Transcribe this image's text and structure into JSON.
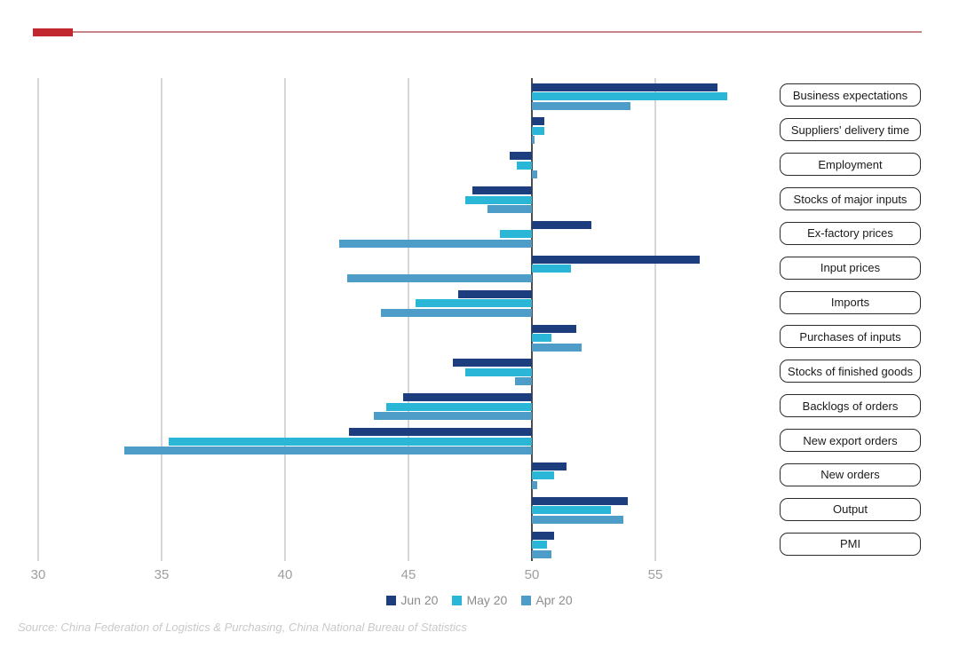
{
  "header": {
    "accent_color": "#c2262e",
    "rule_color": "#c9838a"
  },
  "chart_data": {
    "type": "bar",
    "orientation": "horizontal",
    "title": "",
    "baseline": 50,
    "xlim": [
      30,
      58.5
    ],
    "xticks": [
      30,
      35,
      40,
      45,
      50,
      55
    ],
    "grid": true,
    "legend_position": "bottom-center",
    "gridline_color": "#d6d6d6",
    "baseline_color": "#4d4d4d",
    "tick_label_color": "#9e9e9e",
    "categories": [
      "Business expectations",
      "Suppliers' delivery time",
      "Employment",
      "Stocks of major inputs",
      "Ex-factory prices",
      "Input prices",
      "Imports",
      "Purchases of inputs",
      "Stocks of finished goods",
      "Backlogs of orders",
      "New export orders",
      "New orders",
      "Output",
      "PMI"
    ],
    "series": [
      {
        "name": "Jun 20",
        "color": "#1d3e7e",
        "values": [
          57.5,
          50.5,
          49.1,
          47.6,
          52.4,
          56.8,
          47.0,
          51.8,
          46.8,
          44.8,
          42.6,
          51.4,
          53.9,
          50.9
        ]
      },
      {
        "name": "May 20",
        "color": "#2ab7d7",
        "values": [
          57.9,
          50.5,
          49.4,
          47.3,
          48.7,
          51.6,
          45.3,
          50.8,
          47.3,
          44.1,
          35.3,
          50.9,
          53.2,
          50.6
        ]
      },
      {
        "name": "Apr 20",
        "color": "#4e9dc9",
        "values": [
          54.0,
          50.1,
          50.2,
          48.2,
          42.2,
          42.5,
          43.9,
          52.0,
          49.3,
          43.6,
          33.5,
          50.2,
          53.7,
          50.8
        ]
      }
    ]
  },
  "source": "Source: China Federation of Logistics & Purchasing, China National Bureau of Statistics"
}
